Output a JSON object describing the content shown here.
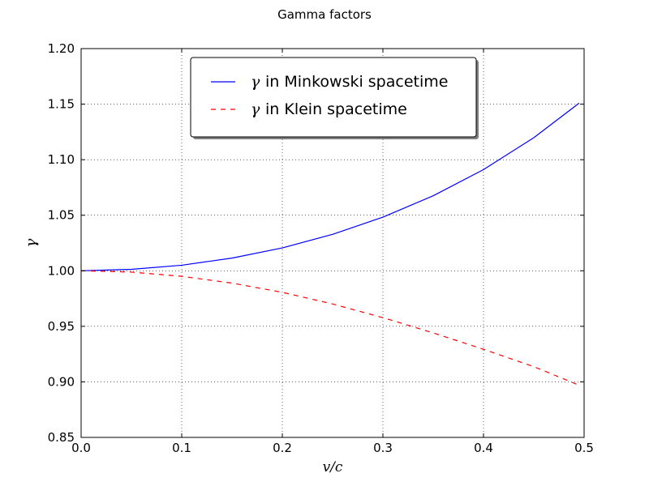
{
  "chart_data": {
    "type": "line",
    "title": "Gamma factors",
    "xlabel": "v/c",
    "ylabel": "γ",
    "xlim": [
      0.0,
      0.5
    ],
    "ylim": [
      0.85,
      1.2
    ],
    "xticks": [
      "0.0",
      "0.1",
      "0.2",
      "0.3",
      "0.4",
      "0.5"
    ],
    "yticks": [
      "0.85",
      "0.90",
      "0.95",
      "1.00",
      "1.05",
      "1.10",
      "1.15",
      "1.20"
    ],
    "grid": true,
    "legend_position": "top-center",
    "x": [
      0.0,
      0.05,
      0.1,
      0.15,
      0.2,
      0.25,
      0.3,
      0.35,
      0.4,
      0.45,
      0.495
    ],
    "series": [
      {
        "name": "γ in Minkowski spacetime",
        "legend_symbol": "γ",
        "legend_text": "in Minkowski spacetime",
        "color": "#0000ff",
        "dash": "solid",
        "values": [
          1.0,
          1.0013,
          1.005,
          1.0114,
          1.0206,
          1.0328,
          1.0483,
          1.0675,
          1.0911,
          1.1198,
          1.1509
        ]
      },
      {
        "name": "γ in Klein spacetime",
        "legend_symbol": "γ",
        "legend_text": "in Klein spacetime",
        "color": "#ff0000",
        "dash": "dashed",
        "values": [
          1.0,
          0.9988,
          0.995,
          0.9889,
          0.9806,
          0.9701,
          0.9578,
          0.9441,
          0.9293,
          0.9137,
          0.897
        ]
      }
    ]
  }
}
